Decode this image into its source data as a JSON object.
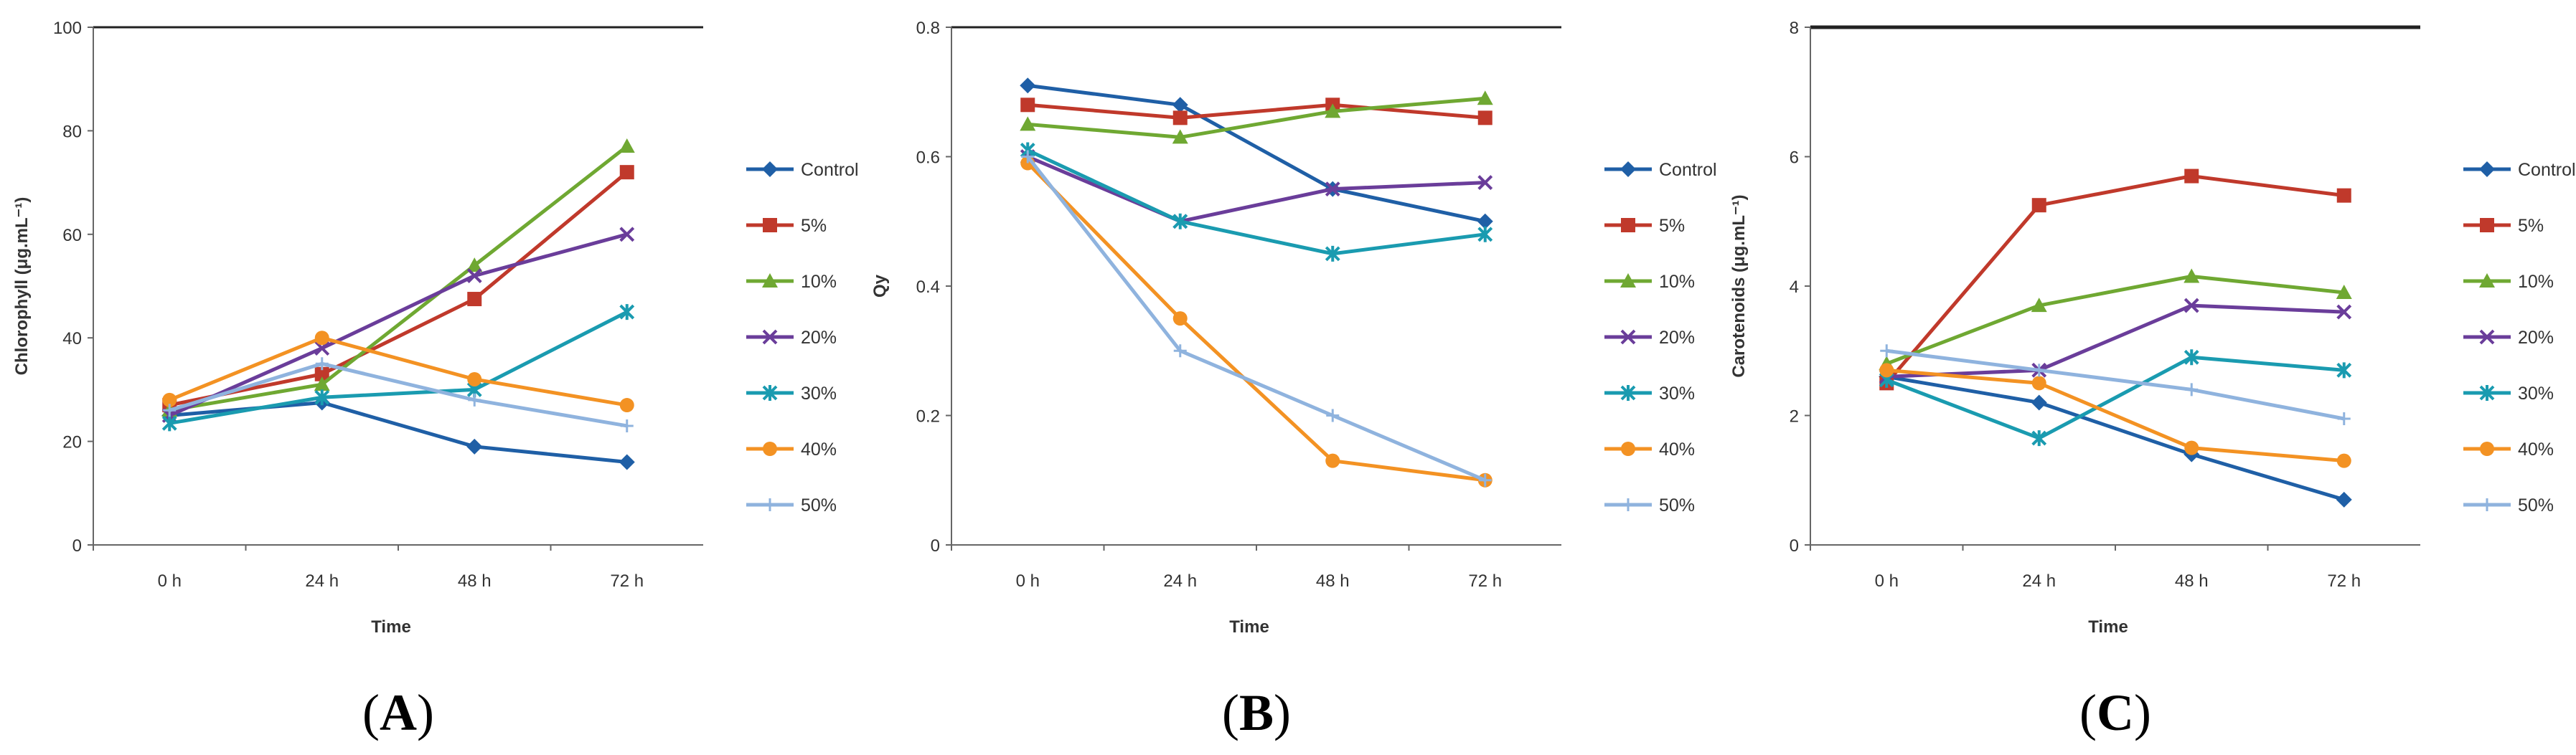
{
  "chart_data": [
    {
      "type": "line",
      "panel_label": "(A)",
      "panel_letter": "A",
      "xlabel": "Time",
      "ylabel": "Chlorophyll (μg.mL⁻¹)",
      "categories": [
        "0 h",
        "24 h",
        "48 h",
        "72 h"
      ],
      "ylim": [
        0,
        100
      ],
      "yticks": [
        0,
        20,
        40,
        60,
        80,
        100
      ],
      "legend_position": "right",
      "series": [
        {
          "name": "Control",
          "marker": "diamond",
          "values": [
            25,
            27.5,
            19,
            16
          ]
        },
        {
          "name": "5%",
          "marker": "square",
          "values": [
            27,
            33,
            47.5,
            72
          ]
        },
        {
          "name": "10%",
          "marker": "triangle",
          "values": [
            26,
            31,
            54,
            77
          ]
        },
        {
          "name": "20%",
          "marker": "x",
          "values": [
            25,
            38,
            52,
            60
          ]
        },
        {
          "name": "30%",
          "marker": "star",
          "values": [
            23.5,
            28.5,
            30,
            45
          ]
        },
        {
          "name": "40%",
          "marker": "circle",
          "values": [
            28,
            40,
            32,
            27
          ]
        },
        {
          "name": "50%",
          "marker": "plus",
          "values": [
            26,
            35,
            28,
            23
          ]
        }
      ]
    },
    {
      "type": "line",
      "panel_label": "(B)",
      "panel_letter": "B",
      "xlabel": "Time",
      "ylabel": "Qy",
      "categories": [
        "0 h",
        "24 h",
        "48 h",
        "72 h"
      ],
      "ylim": [
        0,
        0.8
      ],
      "yticks": [
        0,
        0.2,
        0.4,
        0.6,
        0.8
      ],
      "legend_position": "right",
      "series": [
        {
          "name": "Control",
          "marker": "diamond",
          "values": [
            0.71,
            0.68,
            0.55,
            0.5
          ]
        },
        {
          "name": "5%",
          "marker": "square",
          "values": [
            0.68,
            0.66,
            0.68,
            0.66
          ]
        },
        {
          "name": "10%",
          "marker": "triangle",
          "values": [
            0.65,
            0.63,
            0.67,
            0.69
          ]
        },
        {
          "name": "20%",
          "marker": "x",
          "values": [
            0.6,
            0.5,
            0.55,
            0.56
          ]
        },
        {
          "name": "30%",
          "marker": "star",
          "values": [
            0.61,
            0.5,
            0.45,
            0.48
          ]
        },
        {
          "name": "40%",
          "marker": "circle",
          "values": [
            0.59,
            0.35,
            0.13,
            0.1
          ]
        },
        {
          "name": "50%",
          "marker": "plus",
          "values": [
            0.6,
            0.3,
            0.2,
            0.1
          ]
        }
      ]
    },
    {
      "type": "line",
      "panel_label": "(C)",
      "panel_letter": "C",
      "xlabel": "Time",
      "ylabel": "Carotenoids (μg.mL⁻¹)",
      "categories": [
        "0 h",
        "24 h",
        "48 h",
        "72 h"
      ],
      "ylim": [
        0,
        8
      ],
      "yticks": [
        0,
        2,
        4,
        6,
        8
      ],
      "legend_position": "right",
      "series": [
        {
          "name": "Control",
          "marker": "diamond",
          "values": [
            2.6,
            2.2,
            1.4,
            0.7
          ]
        },
        {
          "name": "5%",
          "marker": "square",
          "values": [
            2.5,
            5.25,
            5.7,
            5.4
          ]
        },
        {
          "name": "10%",
          "marker": "triangle",
          "values": [
            2.8,
            3.7,
            4.15,
            3.9
          ]
        },
        {
          "name": "20%",
          "marker": "x",
          "values": [
            2.6,
            2.7,
            3.7,
            3.6
          ]
        },
        {
          "name": "30%",
          "marker": "star",
          "values": [
            2.55,
            1.65,
            2.9,
            2.7
          ]
        },
        {
          "name": "40%",
          "marker": "circle",
          "values": [
            2.7,
            2.5,
            1.5,
            1.3
          ]
        },
        {
          "name": "50%",
          "marker": "plus",
          "values": [
            3.0,
            2.7,
            2.4,
            1.95
          ]
        }
      ]
    }
  ],
  "colors": {
    "Control": "#1f5fa6",
    "5%": "#c0392b",
    "10%": "#6fa832",
    "20%": "#6a3d9a",
    "30%": "#1a9bb0",
    "40%": "#f39223",
    "50%": "#8fb3de",
    "axis": "#666666",
    "frame_top": "#222222"
  }
}
